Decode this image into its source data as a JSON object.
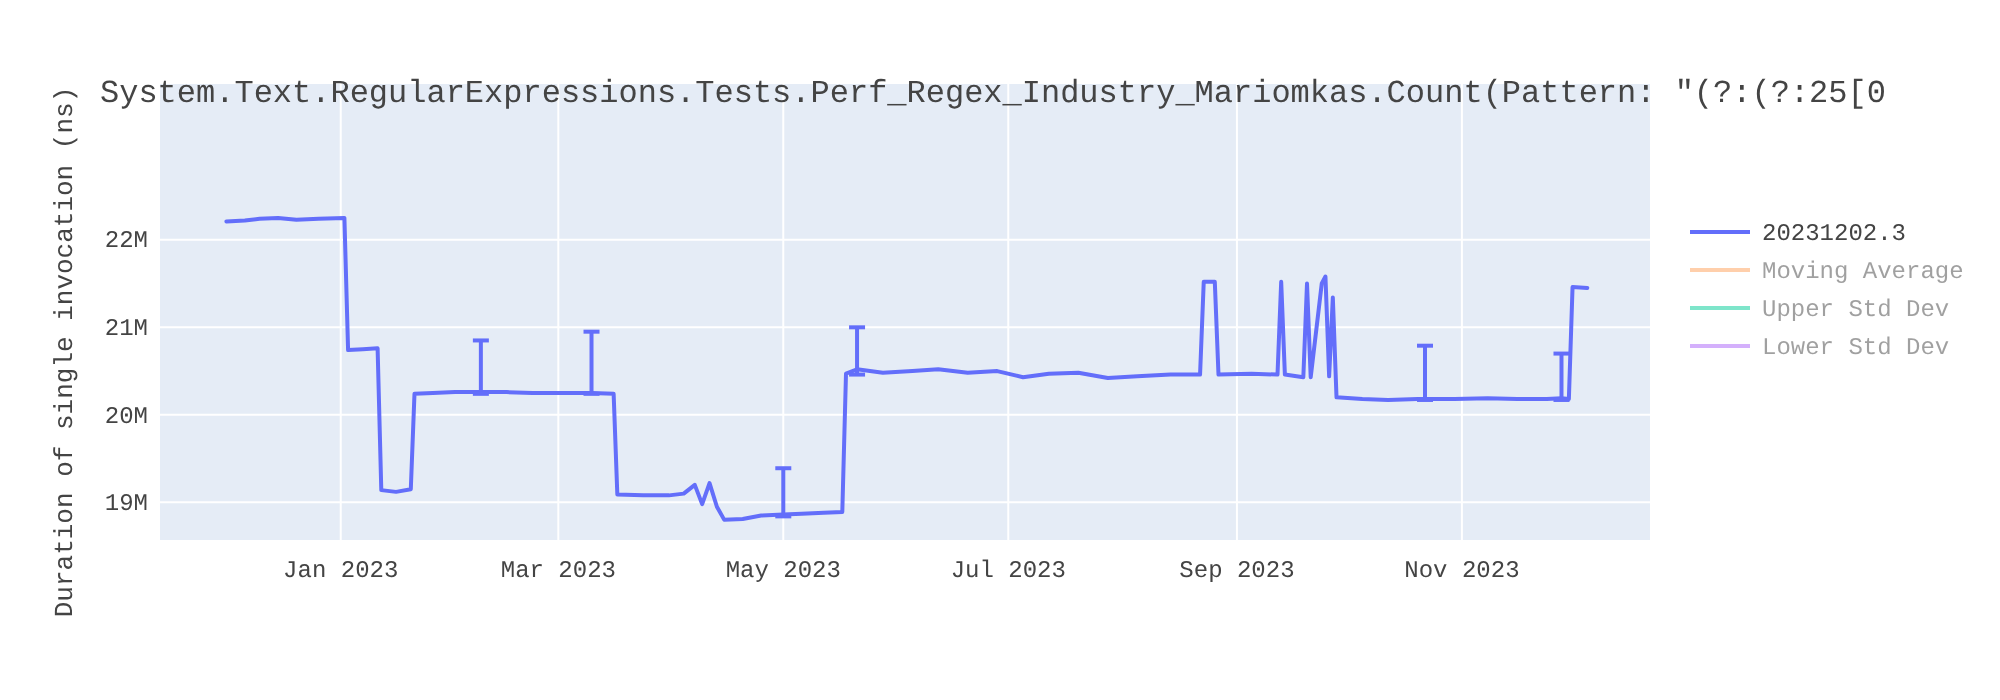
{
  "chart_data": {
    "type": "line",
    "title": "System.Text.RegularExpressions.Tests.Perf_Regex_Industry_Mariomkas.Count(Pattern: \"(?:(?:25[0",
    "ylabel": "Duration of single invocation (ns)",
    "xlim": [
      "2022-11-13",
      "2023-12-22"
    ],
    "xticks": [
      {
        "value": "2023-01-01",
        "label": "Jan 2023"
      },
      {
        "value": "2023-03-01",
        "label": "Mar 2023"
      },
      {
        "value": "2023-05-01",
        "label": "May 2023"
      },
      {
        "value": "2023-07-01",
        "label": "Jul 2023"
      },
      {
        "value": "2023-09-01",
        "label": "Sep 2023"
      },
      {
        "value": "2023-11-01",
        "label": "Nov 2023"
      }
    ],
    "ylim": [
      18570000,
      23780000
    ],
    "yticks": [
      {
        "value": 19000000,
        "label": "19M"
      },
      {
        "value": 20000000,
        "label": "20M"
      },
      {
        "value": 21000000,
        "label": "21M"
      },
      {
        "value": 22000000,
        "label": "22M"
      }
    ],
    "grid": true,
    "legend": "top right",
    "marker": "none",
    "line_style": "solid",
    "series": [
      {
        "name": "20231202.3",
        "color": "#636efa",
        "x": [
          "2022-12-01",
          "2022-12-06",
          "2022-12-10",
          "2022-12-15",
          "2022-12-20",
          "2022-12-26",
          "2023-01-02",
          "2023-01-03",
          "2023-01-07",
          "2023-01-11",
          "2023-01-12",
          "2023-01-16",
          "2023-01-20",
          "2023-01-21",
          "2023-01-26",
          "2023-02-01",
          "2023-02-08",
          "2023-02-15",
          "2023-02-22",
          "2023-03-01",
          "2023-03-05",
          "2023-03-10",
          "2023-03-16",
          "2023-03-17",
          "2023-03-24",
          "2023-03-31",
          "2023-04-04",
          "2023-04-07",
          "2023-04-09",
          "2023-04-11",
          "2023-04-13",
          "2023-04-15",
          "2023-04-20",
          "2023-04-25",
          "2023-05-01",
          "2023-05-06",
          "2023-05-12",
          "2023-05-17",
          "2023-05-18",
          "2023-05-21",
          "2023-05-28",
          "2023-06-05",
          "2023-06-12",
          "2023-06-20",
          "2023-06-28",
          "2023-07-05",
          "2023-07-12",
          "2023-07-20",
          "2023-07-28",
          "2023-08-05",
          "2023-08-14",
          "2023-08-22",
          "2023-08-23",
          "2023-08-26",
          "2023-08-27",
          "2023-09-05",
          "2023-09-12",
          "2023-09-13",
          "2023-09-14",
          "2023-09-19",
          "2023-09-20",
          "2023-09-21",
          "2023-09-24",
          "2023-09-25",
          "2023-09-26",
          "2023-09-27",
          "2023-09-28",
          "2023-10-05",
          "2023-10-12",
          "2023-10-20",
          "2023-10-22",
          "2023-10-30",
          "2023-11-08",
          "2023-11-16",
          "2023-11-24",
          "2023-11-28",
          "2023-11-30",
          "2023-12-01",
          "2023-12-05"
        ],
        "values": [
          22210000,
          22220000,
          22240000,
          22250000,
          22230000,
          22240000,
          22250000,
          20740000,
          20750000,
          20760000,
          19140000,
          19120000,
          19150000,
          20240000,
          20250000,
          20260000,
          20260000,
          20260000,
          20250000,
          20250000,
          20250000,
          20250000,
          20240000,
          19090000,
          19080000,
          19080000,
          19100000,
          19200000,
          18980000,
          19220000,
          18950000,
          18800000,
          18810000,
          18850000,
          18860000,
          18870000,
          18880000,
          18890000,
          20470000,
          20520000,
          20480000,
          20500000,
          20520000,
          20480000,
          20500000,
          20430000,
          20470000,
          20480000,
          20420000,
          20440000,
          20460000,
          20460000,
          21520000,
          21520000,
          20460000,
          20470000,
          20460000,
          21520000,
          20460000,
          20430000,
          21500000,
          20430000,
          21500000,
          21580000,
          20440000,
          21340000,
          20200000,
          20180000,
          20170000,
          20180000,
          20180000,
          20180000,
          20190000,
          20180000,
          20180000,
          20190000,
          20180000,
          21460000,
          21450000
        ],
        "errors": [
          null,
          null,
          null,
          null,
          null,
          null,
          null,
          null,
          null,
          null,
          null,
          null,
          null,
          null,
          null,
          null,
          [
            20240000,
            20850000
          ],
          null,
          null,
          null,
          null,
          [
            20240000,
            20950000
          ],
          null,
          null,
          null,
          null,
          null,
          null,
          null,
          null,
          null,
          null,
          null,
          null,
          [
            18840000,
            19390000
          ],
          null,
          null,
          null,
          null,
          [
            20460000,
            21000000
          ],
          null,
          null,
          null,
          null,
          null,
          null,
          null,
          null,
          null,
          null,
          null,
          null,
          null,
          null,
          null,
          null,
          null,
          null,
          null,
          null,
          null,
          null,
          null,
          null,
          null,
          null,
          null,
          null,
          null,
          null,
          [
            20170000,
            20790000
          ],
          null,
          null,
          null,
          null,
          [
            20170000,
            20700000
          ],
          null,
          null,
          null
        ]
      },
      {
        "name": "Moving Average",
        "color": "#ffa15a"
      },
      {
        "name": "Upper Std Dev",
        "color": "#00cc96"
      },
      {
        "name": "Lower Std Dev",
        "color": "#ab63fa"
      }
    ]
  }
}
